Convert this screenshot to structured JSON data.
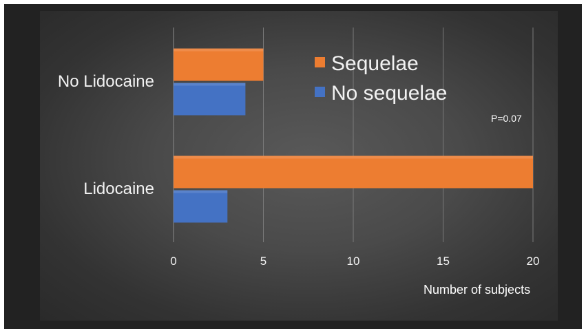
{
  "chart_data": {
    "type": "bar",
    "orientation": "horizontal",
    "categories": [
      "No Lidocaine",
      "Lidocaine"
    ],
    "series": [
      {
        "name": "Sequelae",
        "values": [
          5,
          20
        ],
        "color": "#ED7D31"
      },
      {
        "name": "No sequelae",
        "values": [
          4,
          3
        ],
        "color": "#4472C4"
      }
    ],
    "xlabel": "Number of subjects",
    "ylabel": "",
    "xlim": [
      0,
      20
    ],
    "xticks": [
      0,
      5,
      10,
      15,
      20
    ],
    "grid": true,
    "legend_position": "top-right",
    "annotation": "P=0.07"
  },
  "colors": {
    "background": "#222222",
    "plot_area": "#4a4a4a",
    "gridline": "#7a7a7a",
    "text": "#f2f2f2"
  }
}
